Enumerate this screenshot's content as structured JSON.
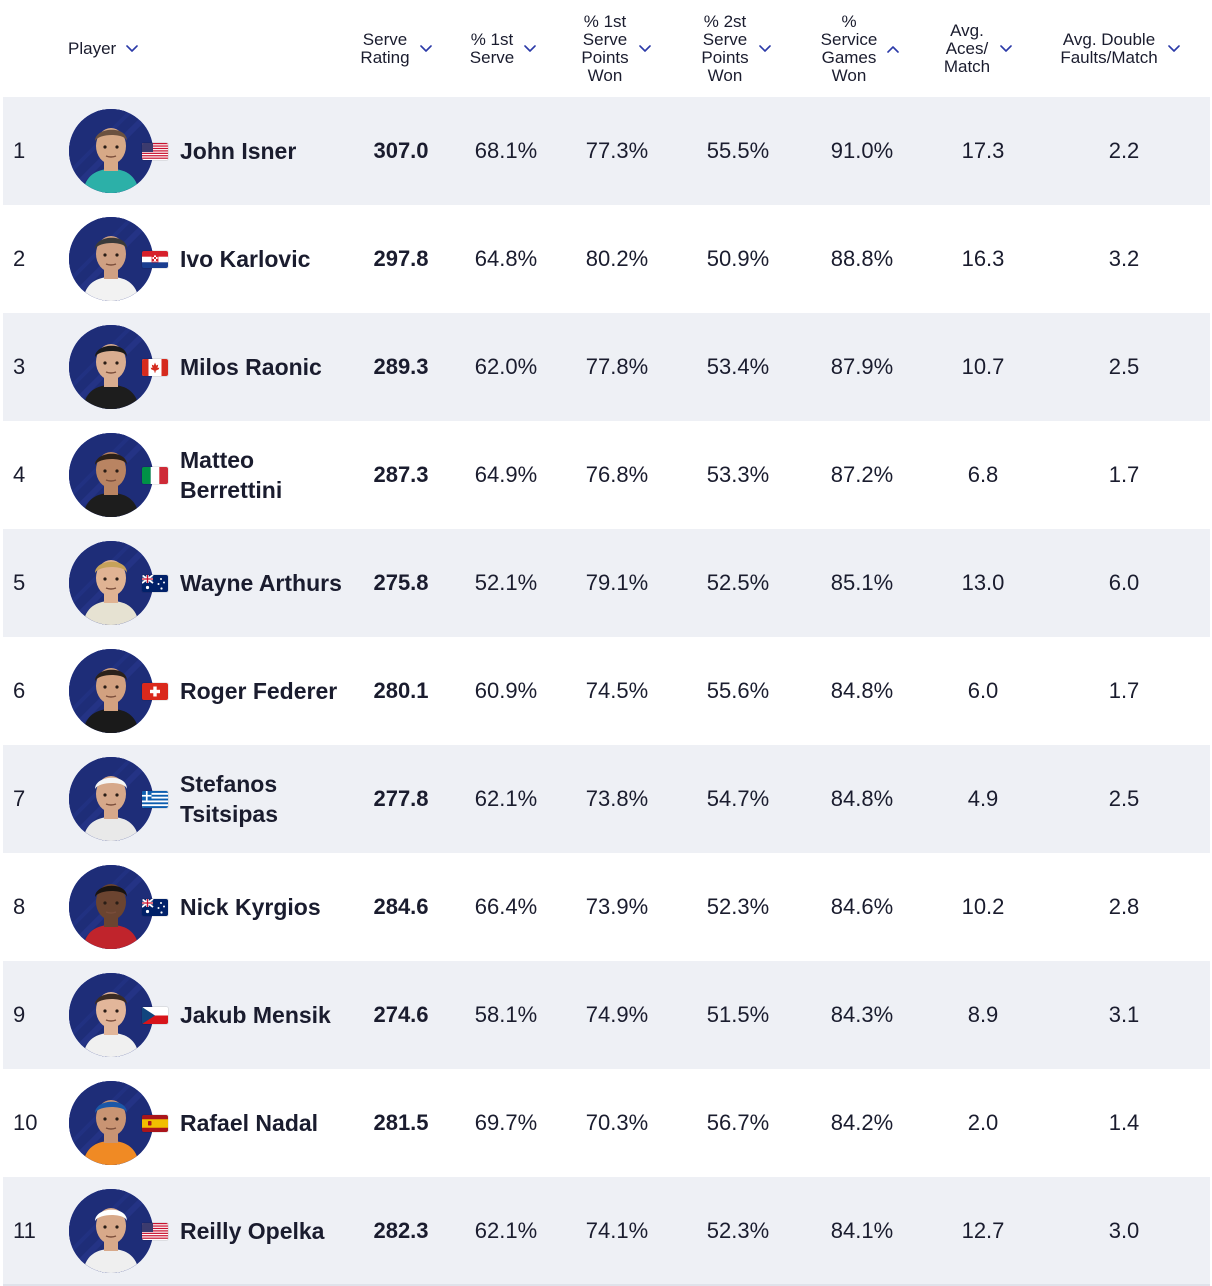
{
  "columns": [
    {
      "key": "player",
      "label": "Player",
      "sort": "desc"
    },
    {
      "key": "serve_rating",
      "label": "Serve\nRating",
      "sort": "desc"
    },
    {
      "key": "first_serve",
      "label": "% 1st\nServe",
      "sort": "desc"
    },
    {
      "key": "first_serve_won",
      "label": "% 1st\nServe\nPoints\nWon",
      "sort": "desc"
    },
    {
      "key": "second_serve_won",
      "label": "% 2st\nServe\nPoints\nWon",
      "sort": "desc"
    },
    {
      "key": "service_games_won",
      "label": "%\nService\nGames\nWon",
      "sort": "asc"
    },
    {
      "key": "aces",
      "label": "Avg.\nAces/\nMatch",
      "sort": "desc"
    },
    {
      "key": "double_faults",
      "label": "Avg. Double\nFaults/Match",
      "sort": "desc"
    }
  ],
  "rows": [
    {
      "rank": "1",
      "name": "John Isner",
      "country": "USA",
      "serve_rating": "307.0",
      "first_serve": "68.1%",
      "first_serve_won": "77.3%",
      "second_serve_won": "55.5%",
      "service_games_won": "91.0%",
      "aces": "17.3",
      "double_faults": "2.2"
    },
    {
      "rank": "2",
      "name": "Ivo Karlovic",
      "country": "CRO",
      "serve_rating": "297.8",
      "first_serve": "64.8%",
      "first_serve_won": "80.2%",
      "second_serve_won": "50.9%",
      "service_games_won": "88.8%",
      "aces": "16.3",
      "double_faults": "3.2"
    },
    {
      "rank": "3",
      "name": "Milos Raonic",
      "country": "CAN",
      "serve_rating": "289.3",
      "first_serve": "62.0%",
      "first_serve_won": "77.8%",
      "second_serve_won": "53.4%",
      "service_games_won": "87.9%",
      "aces": "10.7",
      "double_faults": "2.5"
    },
    {
      "rank": "4",
      "name": "Matteo Berrettini",
      "country": "ITA",
      "serve_rating": "287.3",
      "first_serve": "64.9%",
      "first_serve_won": "76.8%",
      "second_serve_won": "53.3%",
      "service_games_won": "87.2%",
      "aces": "6.8",
      "double_faults": "1.7"
    },
    {
      "rank": "5",
      "name": "Wayne Arthurs",
      "country": "AUS",
      "serve_rating": "275.8",
      "first_serve": "52.1%",
      "first_serve_won": "79.1%",
      "second_serve_won": "52.5%",
      "service_games_won": "85.1%",
      "aces": "13.0",
      "double_faults": "6.0"
    },
    {
      "rank": "6",
      "name": "Roger Federer",
      "country": "SUI",
      "serve_rating": "280.1",
      "first_serve": "60.9%",
      "first_serve_won": "74.5%",
      "second_serve_won": "55.6%",
      "service_games_won": "84.8%",
      "aces": "6.0",
      "double_faults": "1.7"
    },
    {
      "rank": "7",
      "name": "Stefanos Tsitsipas",
      "country": "GRE",
      "serve_rating": "277.8",
      "first_serve": "62.1%",
      "first_serve_won": "73.8%",
      "second_serve_won": "54.7%",
      "service_games_won": "84.8%",
      "aces": "4.9",
      "double_faults": "2.5"
    },
    {
      "rank": "8",
      "name": "Nick Kyrgios",
      "country": "AUS",
      "serve_rating": "284.6",
      "first_serve": "66.4%",
      "first_serve_won": "73.9%",
      "second_serve_won": "52.3%",
      "service_games_won": "84.6%",
      "aces": "10.2",
      "double_faults": "2.8"
    },
    {
      "rank": "9",
      "name": "Jakub Mensik",
      "country": "CZE",
      "serve_rating": "274.6",
      "first_serve": "58.1%",
      "first_serve_won": "74.9%",
      "second_serve_won": "51.5%",
      "service_games_won": "84.3%",
      "aces": "8.9",
      "double_faults": "3.1"
    },
    {
      "rank": "10",
      "name": "Rafael Nadal",
      "country": "ESP",
      "serve_rating": "281.5",
      "first_serve": "69.7%",
      "first_serve_won": "70.3%",
      "second_serve_won": "56.7%",
      "service_games_won": "84.2%",
      "aces": "2.0",
      "double_faults": "1.4"
    },
    {
      "rank": "11",
      "name": "Reilly Opelka",
      "country": "USA",
      "serve_rating": "282.3",
      "first_serve": "62.1%",
      "first_serve_won": "74.1%",
      "second_serve_won": "52.3%",
      "service_games_won": "84.1%",
      "aces": "12.7",
      "double_faults": "3.0"
    }
  ],
  "colors": {
    "accent": "#2b3aa8",
    "row_shade": "#eef0f5",
    "text": "#1a1c2e"
  }
}
